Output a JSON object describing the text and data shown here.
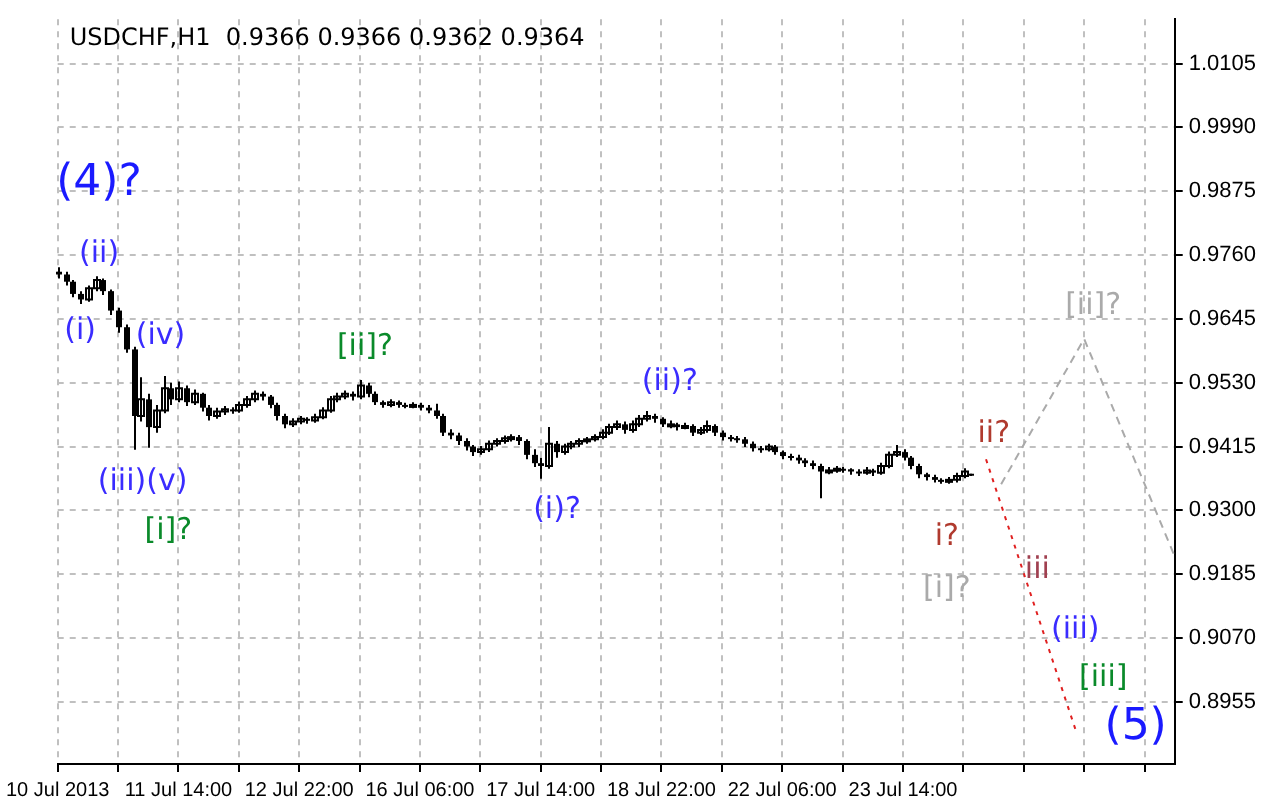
{
  "chart_data": {
    "type": "candlestick",
    "title": "USDCHF,H1  0.9366 0.9366 0.9362 0.9364",
    "color": "#000000",
    "grid": true,
    "legend": false,
    "categories": [
      "10 Jul 2013",
      null,
      null,
      null,
      null,
      null,
      null,
      null,
      null,
      null,
      null,
      null,
      null,
      null,
      null,
      null,
      "11 Jul 14:00",
      null,
      null,
      null,
      null,
      null,
      null,
      null,
      null,
      null,
      null,
      null,
      null,
      null,
      null,
      null,
      "12 Jul 22:00",
      null,
      null,
      null,
      null,
      null,
      null,
      null,
      null,
      null,
      null,
      null,
      null,
      null,
      null,
      null,
      "16 Jul 06:00",
      null,
      null,
      null,
      null,
      null,
      null,
      null,
      null,
      null,
      null,
      null,
      null,
      null,
      null,
      null,
      "17 Jul 14:00",
      null,
      null,
      null,
      null,
      null,
      null,
      null,
      null,
      null,
      null,
      null,
      null,
      null,
      null,
      null,
      "18 Jul 22:00",
      null,
      null,
      null,
      null,
      null,
      null,
      null,
      null,
      null,
      null,
      null,
      null,
      null,
      null,
      null,
      "22 Jul 06:00",
      null,
      null,
      null,
      null,
      null,
      null,
      null,
      null,
      null,
      null,
      null,
      null,
      null,
      null,
      null,
      "23 Jul 14:00",
      null,
      null,
      null,
      null,
      null,
      null,
      null,
      null,
      null,
      null,
      null,
      null,
      null,
      null,
      null,
      null,
      null,
      null,
      null,
      null,
      null,
      null,
      null,
      null,
      null,
      null,
      null,
      null,
      null,
      null,
      null,
      null,
      null,
      null,
      null,
      null
    ],
    "ylim": [
      0.8843,
      1.0185
    ],
    "yticks": [
      {
        "value": 0.8955,
        "label": "0.8955"
      },
      {
        "value": 0.907,
        "label": "0.9070"
      },
      {
        "value": 0.9185,
        "label": "0.9185"
      },
      {
        "value": 0.93,
        "label": "0.9300"
      },
      {
        "value": 0.9415,
        "label": "0.9415"
      },
      {
        "value": 0.953,
        "label": "0.9530"
      },
      {
        "value": 0.9645,
        "label": "0.9645"
      },
      {
        "value": 0.976,
        "label": "0.9760"
      },
      {
        "value": 0.9875,
        "label": "0.9875"
      },
      {
        "value": 0.999,
        "label": "0.9990"
      },
      {
        "value": 1.0105,
        "label": "1.0105"
      }
    ],
    "ohlc": [
      [
        0.973,
        0.9738,
        0.9718,
        0.9725
      ],
      [
        0.9725,
        0.973,
        0.9705,
        0.9712
      ],
      [
        0.9712,
        0.9715,
        0.9684,
        0.969
      ],
      [
        0.969,
        0.9695,
        0.9672,
        0.968
      ],
      [
        0.968,
        0.9705,
        0.9676,
        0.97
      ],
      [
        0.97,
        0.9722,
        0.9695,
        0.9715
      ],
      [
        0.9715,
        0.9718,
        0.9688,
        0.9695
      ],
      [
        0.9695,
        0.9698,
        0.9652,
        0.966
      ],
      [
        0.966,
        0.9665,
        0.962,
        0.963
      ],
      [
        0.963,
        0.9635,
        0.9584,
        0.959
      ],
      [
        0.959,
        0.9595,
        0.9409,
        0.947
      ],
      [
        0.947,
        0.954,
        0.946,
        0.95
      ],
      [
        0.95,
        0.951,
        0.9413,
        0.945
      ],
      [
        0.945,
        0.949,
        0.944,
        0.948
      ],
      [
        0.948,
        0.9542,
        0.9475,
        0.952
      ],
      [
        0.952,
        0.953,
        0.949,
        0.95
      ],
      [
        0.95,
        0.9532,
        0.9495,
        0.952
      ],
      [
        0.952,
        0.9525,
        0.9488,
        0.9495
      ],
      [
        0.9495,
        0.9518,
        0.949,
        0.951
      ],
      [
        0.951,
        0.9512,
        0.9478,
        0.9485
      ],
      [
        0.9485,
        0.949,
        0.9462,
        0.947
      ],
      [
        0.947,
        0.9485,
        0.9465,
        0.9478
      ],
      [
        0.9478,
        0.9488,
        0.9472,
        0.9482
      ],
      [
        0.9482,
        0.9486,
        0.9474,
        0.948
      ],
      [
        0.948,
        0.9496,
        0.9476,
        0.949
      ],
      [
        0.949,
        0.9506,
        0.9485,
        0.95
      ],
      [
        0.95,
        0.9516,
        0.9495,
        0.951
      ],
      [
        0.951,
        0.9514,
        0.9498,
        0.9505
      ],
      [
        0.9505,
        0.9508,
        0.9484,
        0.949
      ],
      [
        0.949,
        0.9494,
        0.9462,
        0.947
      ],
      [
        0.947,
        0.9474,
        0.9448,
        0.9455
      ],
      [
        0.9455,
        0.9466,
        0.945,
        0.946
      ],
      [
        0.946,
        0.947,
        0.9455,
        0.9465
      ],
      [
        0.9465,
        0.9468,
        0.9456,
        0.9462
      ],
      [
        0.9462,
        0.9474,
        0.9458,
        0.9468
      ],
      [
        0.9468,
        0.9486,
        0.9464,
        0.948
      ],
      [
        0.948,
        0.9506,
        0.9476,
        0.95
      ],
      [
        0.95,
        0.9512,
        0.9495,
        0.9505
      ],
      [
        0.9505,
        0.9516,
        0.95,
        0.951
      ],
      [
        0.951,
        0.9514,
        0.9498,
        0.9505
      ],
      [
        0.9505,
        0.9535,
        0.95,
        0.9525
      ],
      [
        0.9525,
        0.953,
        0.9504,
        0.951
      ],
      [
        0.951,
        0.9514,
        0.949,
        0.9495
      ],
      [
        0.9495,
        0.9498,
        0.9485,
        0.949
      ],
      [
        0.949,
        0.95,
        0.9486,
        0.9495
      ],
      [
        0.9495,
        0.9498,
        0.9485,
        0.949
      ],
      [
        0.949,
        0.9494,
        0.9484,
        0.9488
      ],
      [
        0.9488,
        0.9495,
        0.9484,
        0.949
      ],
      [
        0.949,
        0.9494,
        0.948,
        0.9485
      ],
      [
        0.9485,
        0.949,
        0.9475,
        0.948
      ],
      [
        0.948,
        0.9492,
        0.9465,
        0.947
      ],
      [
        0.947,
        0.9474,
        0.9434,
        0.944
      ],
      [
        0.944,
        0.9446,
        0.9428,
        0.9435
      ],
      [
        0.9435,
        0.944,
        0.9418,
        0.9425
      ],
      [
        0.9425,
        0.943,
        0.9408,
        0.9415
      ],
      [
        0.9415,
        0.9418,
        0.9398,
        0.9405
      ],
      [
        0.9405,
        0.9416,
        0.94,
        0.941
      ],
      [
        0.941,
        0.9426,
        0.9405,
        0.942
      ],
      [
        0.942,
        0.943,
        0.9415,
        0.9425
      ],
      [
        0.9425,
        0.9435,
        0.942,
        0.943
      ],
      [
        0.943,
        0.9437,
        0.9424,
        0.9432
      ],
      [
        0.9432,
        0.9436,
        0.9418,
        0.9425
      ],
      [
        0.9425,
        0.9428,
        0.9392,
        0.94
      ],
      [
        0.94,
        0.941,
        0.9378,
        0.9385
      ],
      [
        0.9385,
        0.9395,
        0.9357,
        0.938
      ],
      [
        0.938,
        0.945,
        0.9375,
        0.942
      ],
      [
        0.942,
        0.9425,
        0.9395,
        0.9405
      ],
      [
        0.9405,
        0.942,
        0.94,
        0.9415
      ],
      [
        0.9415,
        0.9425,
        0.941,
        0.942
      ],
      [
        0.942,
        0.943,
        0.9414,
        0.9425
      ],
      [
        0.9425,
        0.9432,
        0.942,
        0.9428
      ],
      [
        0.9428,
        0.9437,
        0.9424,
        0.9432
      ],
      [
        0.9432,
        0.9446,
        0.9428,
        0.944
      ],
      [
        0.944,
        0.9456,
        0.9436,
        0.945
      ],
      [
        0.945,
        0.9462,
        0.9445,
        0.9455
      ],
      [
        0.9455,
        0.946,
        0.9438,
        0.9445
      ],
      [
        0.9445,
        0.9462,
        0.944,
        0.9455
      ],
      [
        0.9455,
        0.9472,
        0.945,
        0.9465
      ],
      [
        0.9465,
        0.9479,
        0.946,
        0.947
      ],
      [
        0.947,
        0.9474,
        0.9458,
        0.9465
      ],
      [
        0.9465,
        0.9468,
        0.945,
        0.9455
      ],
      [
        0.9455,
        0.9462,
        0.9448,
        0.9455
      ],
      [
        0.9455,
        0.9458,
        0.9444,
        0.945
      ],
      [
        0.945,
        0.9458,
        0.9446,
        0.9452
      ],
      [
        0.9452,
        0.9455,
        0.9434,
        0.944
      ],
      [
        0.944,
        0.945,
        0.9436,
        0.9445
      ],
      [
        0.9445,
        0.9462,
        0.944,
        0.9452
      ],
      [
        0.9452,
        0.9455,
        0.9434,
        0.944
      ],
      [
        0.944,
        0.9444,
        0.9426,
        0.9432
      ],
      [
        0.9432,
        0.9436,
        0.9424,
        0.943
      ],
      [
        0.943,
        0.9434,
        0.9422,
        0.9428
      ],
      [
        0.9428,
        0.9432,
        0.9414,
        0.942
      ],
      [
        0.942,
        0.9424,
        0.9406,
        0.9412
      ],
      [
        0.9412,
        0.9416,
        0.9404,
        0.941
      ],
      [
        0.941,
        0.942,
        0.9406,
        0.9415
      ],
      [
        0.9415,
        0.9418,
        0.94,
        0.9405
      ],
      [
        0.9405,
        0.9408,
        0.9392,
        0.9398
      ],
      [
        0.9398,
        0.9402,
        0.939,
        0.9395
      ],
      [
        0.9395,
        0.94,
        0.9384,
        0.939
      ],
      [
        0.939,
        0.9394,
        0.9378,
        0.9385
      ],
      [
        0.9385,
        0.939,
        0.9374,
        0.938
      ],
      [
        0.938,
        0.9384,
        0.9322,
        0.937
      ],
      [
        0.937,
        0.9378,
        0.9365,
        0.9372
      ],
      [
        0.9372,
        0.938,
        0.9368,
        0.9375
      ],
      [
        0.9375,
        0.9378,
        0.9368,
        0.9374
      ],
      [
        0.9374,
        0.9376,
        0.9364,
        0.937
      ],
      [
        0.937,
        0.9374,
        0.9362,
        0.9368
      ],
      [
        0.9368,
        0.9378,
        0.9364,
        0.9372
      ],
      [
        0.9372,
        0.9375,
        0.9362,
        0.9368
      ],
      [
        0.9368,
        0.9386,
        0.9364,
        0.938
      ],
      [
        0.938,
        0.9406,
        0.9376,
        0.94
      ],
      [
        0.94,
        0.9418,
        0.9396,
        0.9405
      ],
      [
        0.9405,
        0.941,
        0.939,
        0.9395
      ],
      [
        0.9395,
        0.9398,
        0.9374,
        0.938
      ],
      [
        0.938,
        0.9384,
        0.9358,
        0.9365
      ],
      [
        0.9365,
        0.9368,
        0.9354,
        0.936
      ],
      [
        0.936,
        0.9364,
        0.935,
        0.9355
      ],
      [
        0.9355,
        0.9358,
        0.9348,
        0.9352
      ],
      [
        0.9352,
        0.936,
        0.9348,
        0.9355
      ],
      [
        0.9355,
        0.9368,
        0.935,
        0.9362
      ],
      [
        0.9362,
        0.9376,
        0.9358,
        0.937
      ],
      [
        0.9366,
        0.9366,
        0.9362,
        0.9364
      ],
      null,
      null,
      null,
      null,
      null,
      null,
      null,
      null,
      null,
      null,
      null,
      null,
      null,
      null,
      null,
      null,
      null,
      null,
      null,
      null,
      null,
      null,
      null,
      null,
      null,
      null,
      null
    ],
    "series": [
      {
        "type": "line",
        "color": "#e02020",
        "line_style": "dotted",
        "values": [
          null,
          null,
          null,
          null,
          null,
          null,
          null,
          null,
          null,
          null,
          null,
          null,
          null,
          null,
          null,
          null,
          null,
          null,
          null,
          null,
          null,
          null,
          null,
          null,
          null,
          null,
          null,
          null,
          null,
          null,
          null,
          null,
          null,
          null,
          null,
          null,
          null,
          null,
          null,
          null,
          null,
          null,
          null,
          null,
          null,
          null,
          null,
          null,
          null,
          null,
          null,
          null,
          null,
          null,
          null,
          null,
          null,
          null,
          null,
          null,
          null,
          null,
          null,
          null,
          null,
          null,
          null,
          null,
          null,
          null,
          null,
          null,
          null,
          null,
          null,
          null,
          null,
          null,
          null,
          null,
          null,
          null,
          null,
          null,
          null,
          null,
          null,
          null,
          null,
          null,
          null,
          null,
          null,
          null,
          null,
          null,
          null,
          null,
          null,
          null,
          null,
          null,
          null,
          null,
          null,
          null,
          null,
          null,
          null,
          null,
          null,
          null,
          null,
          null,
          null,
          null,
          null,
          null,
          null,
          null,
          null,
          null,
          null,
          0.9392,
          null,
          null,
          null,
          null,
          null,
          null,
          null,
          null,
          null,
          null,
          null,
          0.8899,
          null,
          null,
          null,
          null,
          null,
          null,
          null,
          null,
          null,
          null,
          null,
          null,
          null
        ]
      },
      {
        "type": "line",
        "color": "#aaaaaa",
        "line_style": "dashed",
        "values": [
          null,
          null,
          null,
          null,
          null,
          null,
          null,
          null,
          null,
          null,
          null,
          null,
          null,
          null,
          null,
          null,
          null,
          null,
          null,
          null,
          null,
          null,
          null,
          null,
          null,
          null,
          null,
          null,
          null,
          null,
          null,
          null,
          null,
          null,
          null,
          null,
          null,
          null,
          null,
          null,
          null,
          null,
          null,
          null,
          null,
          null,
          null,
          null,
          null,
          null,
          null,
          null,
          null,
          null,
          null,
          null,
          null,
          null,
          null,
          null,
          null,
          null,
          null,
          null,
          null,
          null,
          null,
          null,
          null,
          null,
          null,
          null,
          null,
          null,
          null,
          null,
          null,
          null,
          null,
          null,
          null,
          null,
          null,
          null,
          null,
          null,
          null,
          null,
          null,
          null,
          null,
          null,
          null,
          null,
          null,
          null,
          null,
          null,
          null,
          null,
          null,
          null,
          null,
          null,
          null,
          null,
          null,
          null,
          null,
          null,
          null,
          null,
          null,
          null,
          null,
          null,
          null,
          null,
          null,
          null,
          null,
          null,
          null,
          null,
          null,
          0.9347,
          null,
          null,
          null,
          null,
          null,
          null,
          null,
          null,
          null,
          null,
          0.9609,
          null,
          null,
          null,
          null,
          null,
          null,
          null,
          null,
          null,
          null,
          null,
          0.9217
        ]
      }
    ],
    "annotations": [
      "(4)?",
      "(ii)",
      "(i)",
      "(iv)",
      "(iii)(v)",
      "[i]?",
      "[ii]?",
      "(i)?",
      "(ii)?",
      "ii?",
      "i?",
      "[i]?",
      "iii",
      "(iii)",
      "[iii]",
      "(5)",
      "[ii]?"
    ]
  }
}
